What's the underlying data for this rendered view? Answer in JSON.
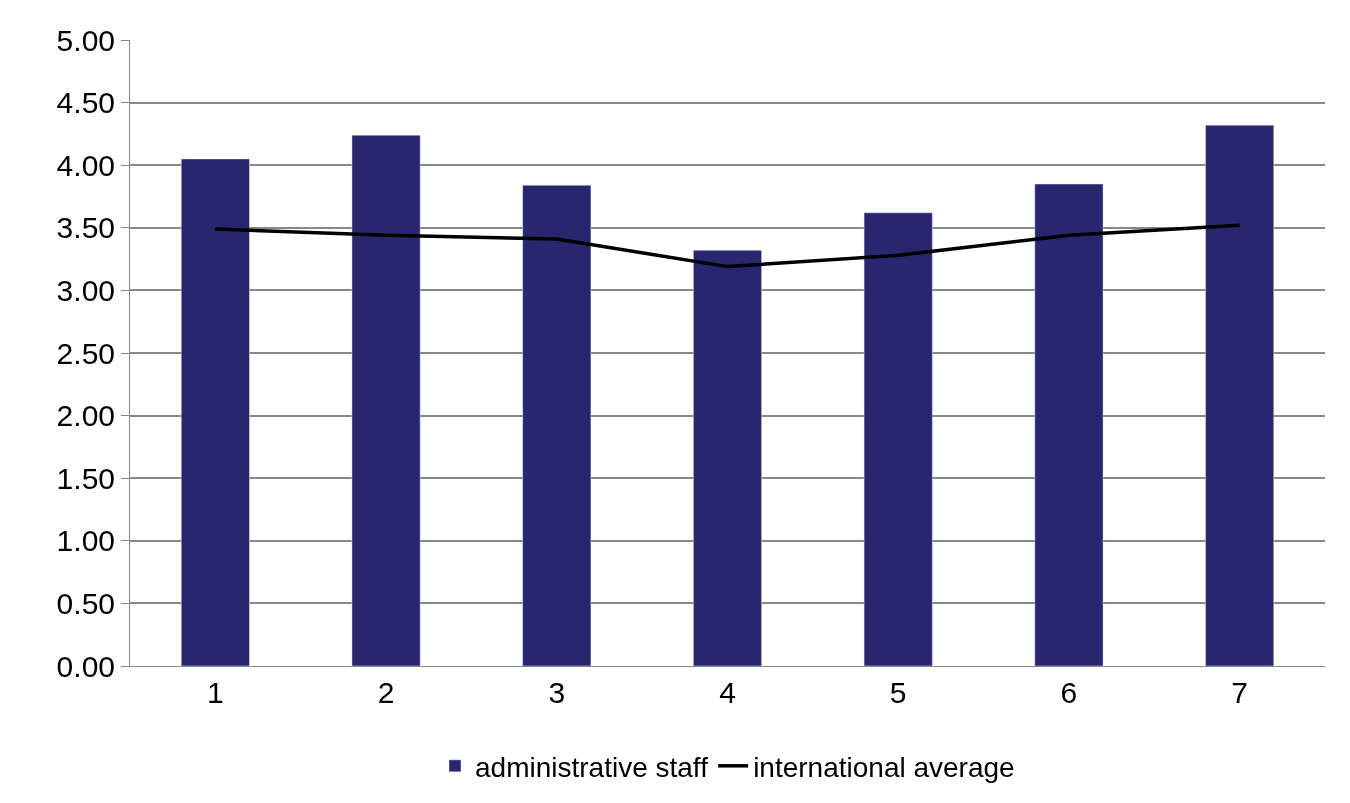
{
  "chart_data": {
    "type": "bar",
    "categories": [
      "1",
      "2",
      "3",
      "4",
      "5",
      "6",
      "7"
    ],
    "series": [
      {
        "name": "administrative staff",
        "color": "#27266f",
        "values": [
          4.05,
          4.24,
          3.84,
          3.32,
          3.62,
          3.85,
          4.32
        ]
      },
      {
        "name": "international average",
        "color": "#000000",
        "type": "line",
        "values": [
          3.49,
          3.44,
          3.41,
          3.19,
          3.28,
          3.44,
          3.52
        ]
      }
    ],
    "ylim": [
      0,
      5
    ],
    "yticks": [
      {
        "value": 0,
        "label": "0.00"
      },
      {
        "value": 0.5,
        "label": "0.50"
      },
      {
        "value": 1,
        "label": "1.00"
      },
      {
        "value": 1.5,
        "label": "1.50"
      },
      {
        "value": 2,
        "label": "2.00"
      },
      {
        "value": 2.5,
        "label": "2.50"
      },
      {
        "value": 3,
        "label": "3.00"
      },
      {
        "value": 3.5,
        "label": "3.50"
      },
      {
        "value": 4,
        "label": "4.00"
      },
      {
        "value": 4.5,
        "label": "4.50"
      },
      {
        "value": 5,
        "label": "5.00"
      }
    ],
    "grid": "y",
    "legend": "bottom",
    "marker": "none",
    "line_style": "solid"
  }
}
